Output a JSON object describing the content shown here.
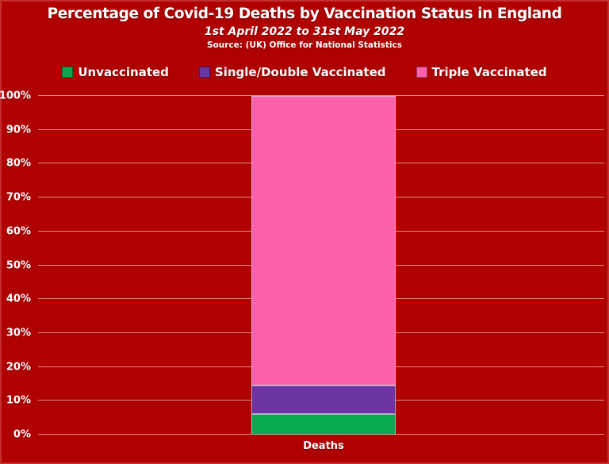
{
  "header": {
    "title": "Percentage of Covid-19 Deaths by Vaccination Status in England",
    "subtitle": "1st April 2022 to 31st May 2022",
    "source": "Source: (UK) Office for National Statistics"
  },
  "chart_data": {
    "type": "bar",
    "stacked": true,
    "title": "Percentage of Covid-19 Deaths by Vaccination Status in England",
    "subtitle": "1st April 2022 to 31st May 2022",
    "source_note": "Source: (UK) Office for National Statistics",
    "categories": [
      "Deaths"
    ],
    "series": [
      {
        "name": "Unvaccinated",
        "values": [
          6
        ],
        "color": "#06a94f"
      },
      {
        "name": "Single/Double Vaccinated",
        "values": [
          8.5
        ],
        "color": "#6b34a2"
      },
      {
        "name": "Triple Vaccinated",
        "values": [
          85.5
        ],
        "color": "#fb61ac"
      }
    ],
    "ylabel": "",
    "xlabel": "",
    "ylim": [
      0,
      100
    ],
    "ytick_step": 10,
    "ytick_labels": [
      "0%",
      "10%",
      "20%",
      "30%",
      "40%",
      "50%",
      "60%",
      "70%",
      "80%",
      "90%",
      "100%"
    ],
    "grid": true,
    "legend_position": "top",
    "colors": {
      "background": "#b00101",
      "gridline": "rgba(255,255,255,0.55)",
      "text": "#ffffff",
      "segment_border": "rgba(205,195,205,0.8)"
    }
  }
}
